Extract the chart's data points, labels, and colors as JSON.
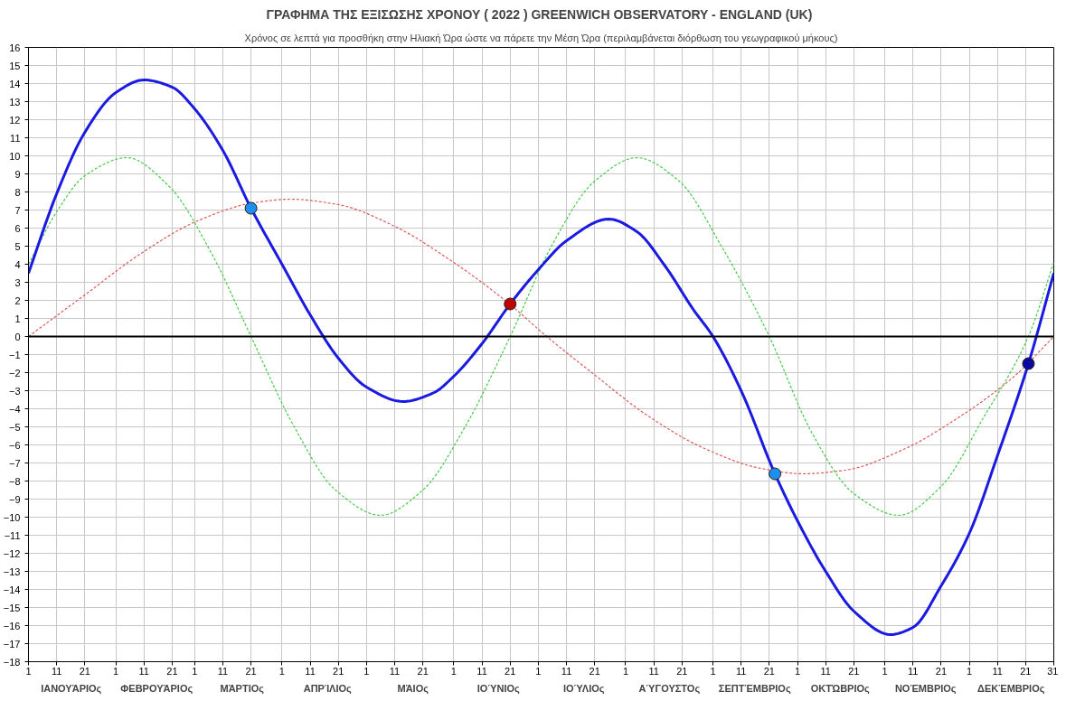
{
  "chart_data": {
    "type": "line",
    "title": "ΓΡΑΦΗΜΑ ΤΗΣ ΕΞΙΣΩΣΗΣ ΧΡΟΝΟΥ ( 2022 )  GREENWICH OBSERVATORY - ENGLAND (UK)",
    "subtitle": "Χρόνος σε λεπτά για προσθήκη στην Ηλιακή Ώρα ώστε να πάρετε την Μέση Ώρα (περιλαμβάνεται διόρθωση του γεωγραφικού μήκους)",
    "xlim": [
      "2022-01-01",
      "2022-12-31"
    ],
    "ylim": [
      -18,
      16
    ],
    "yticks": [
      -18,
      -17,
      -16,
      -15,
      -14,
      -13,
      -12,
      -11,
      -10,
      -9,
      -8,
      -7,
      -6,
      -5,
      -4,
      -3,
      -2,
      -1,
      0,
      1,
      2,
      3,
      4,
      5,
      6,
      7,
      8,
      9,
      10,
      11,
      12,
      13,
      14,
      15,
      16
    ],
    "xticks": [
      {
        "value": "2022-01-01",
        "label": "1"
      },
      {
        "value": "2022-01-11",
        "label": "11"
      },
      {
        "value": "2022-01-21",
        "label": "21"
      },
      {
        "value": "2022-02-01",
        "label": "1"
      },
      {
        "value": "2022-02-11",
        "label": "11"
      },
      {
        "value": "2022-02-21",
        "label": "21"
      },
      {
        "value": "2022-03-01",
        "label": "1"
      },
      {
        "value": "2022-03-11",
        "label": "11"
      },
      {
        "value": "2022-03-21",
        "label": "21"
      },
      {
        "value": "2022-04-01",
        "label": "1"
      },
      {
        "value": "2022-04-11",
        "label": "11"
      },
      {
        "value": "2022-04-21",
        "label": "21"
      },
      {
        "value": "2022-05-01",
        "label": "1"
      },
      {
        "value": "2022-05-11",
        "label": "11"
      },
      {
        "value": "2022-05-21",
        "label": "21"
      },
      {
        "value": "2022-06-01",
        "label": "1"
      },
      {
        "value": "2022-06-11",
        "label": "11"
      },
      {
        "value": "2022-06-21",
        "label": "21"
      },
      {
        "value": "2022-07-01",
        "label": "1"
      },
      {
        "value": "2022-07-11",
        "label": "11"
      },
      {
        "value": "2022-07-21",
        "label": "21"
      },
      {
        "value": "2022-08-01",
        "label": "1"
      },
      {
        "value": "2022-08-11",
        "label": "11"
      },
      {
        "value": "2022-08-21",
        "label": "21"
      },
      {
        "value": "2022-09-01",
        "label": "1"
      },
      {
        "value": "2022-09-11",
        "label": "11"
      },
      {
        "value": "2022-09-21",
        "label": "21"
      },
      {
        "value": "2022-10-01",
        "label": "1"
      },
      {
        "value": "2022-10-11",
        "label": "11"
      },
      {
        "value": "2022-10-21",
        "label": "21"
      },
      {
        "value": "2022-11-01",
        "label": "1"
      },
      {
        "value": "2022-11-11",
        "label": "11"
      },
      {
        "value": "2022-11-21",
        "label": "21"
      },
      {
        "value": "2022-12-01",
        "label": "1"
      },
      {
        "value": "2022-12-11",
        "label": "11"
      },
      {
        "value": "2022-12-21",
        "label": "21"
      },
      {
        "value": "2022-12-31",
        "label": "31"
      }
    ],
    "annotations": [
      "ΙΑΝΟΥΆΡΙΟς",
      "ΦΕΒΡΟΥΆΡΙΟς",
      "ΜΆΡΤΙΟς",
      "ΑΠΡΊΛΙΟς",
      "ΜΆΙΟς",
      "ΙΟΎΝΙΟς",
      "ΙΟΎΛΙΟς",
      "ΑΎΓΟΥΣΤΟς",
      "ΣΕΠΤΈΜΒΡΙΟς",
      "ΟΚΤΏΒΡΙΟς",
      "ΝΟΈΜΒΡΙΟς",
      "ΔΕΚΈΜΒΡΙΟς"
    ],
    "grid": true,
    "ref_lines": [
      {
        "axis": "y",
        "value": 0,
        "color": "#000000"
      }
    ],
    "series": [
      {
        "type": "line",
        "color": "#e05a5a",
        "line_style": "dashed",
        "x": [
          "2022-01-01",
          "2022-01-21",
          "2022-02-10",
          "2022-03-02",
          "2022-03-22",
          "2022-04-04",
          "2022-04-21",
          "2022-05-11",
          "2022-05-31",
          "2022-06-20",
          "2022-07-04",
          "2022-07-20",
          "2022-08-09",
          "2022-08-29",
          "2022-09-18",
          "2022-10-03",
          "2022-10-18",
          "2022-11-07",
          "2022-11-27",
          "2022-12-17",
          "2022-12-31"
        ],
        "values": [
          0,
          2.3,
          4.6,
          6.4,
          7.4,
          7.6,
          7.3,
          6.1,
          4.2,
          1.9,
          0,
          -2.0,
          -4.4,
          -6.2,
          -7.3,
          -7.6,
          -7.4,
          -6.3,
          -4.5,
          -2.2,
          0
        ]
      },
      {
        "type": "line",
        "color": "#44cc44",
        "line_style": "dashed",
        "x": [
          "2022-01-01",
          "2022-01-11",
          "2022-01-21",
          "2022-02-05",
          "2022-02-20",
          "2022-03-07",
          "2022-03-21",
          "2022-04-05",
          "2022-04-20",
          "2022-05-06",
          "2022-05-21",
          "2022-06-05",
          "2022-06-21",
          "2022-07-06",
          "2022-07-21",
          "2022-08-05",
          "2022-08-20",
          "2022-09-04",
          "2022-09-21",
          "2022-10-06",
          "2022-10-21",
          "2022-11-06",
          "2022-11-21",
          "2022-12-06",
          "2022-12-22",
          "2022-12-31"
        ],
        "values": [
          4.0,
          6.9,
          8.9,
          9.9,
          8.3,
          4.6,
          0,
          -4.9,
          -8.5,
          -9.9,
          -8.5,
          -5.0,
          0,
          5.1,
          8.6,
          9.9,
          8.6,
          5.0,
          0,
          -5.3,
          -8.7,
          -9.9,
          -8.3,
          -4.5,
          0,
          4.1
        ]
      },
      {
        "type": "line",
        "color": "#1a1ae0",
        "line_style": "solid",
        "x": [
          "2022-01-01",
          "2022-01-11",
          "2022-01-21",
          "2022-02-01",
          "2022-02-11",
          "2022-02-21",
          "2022-03-01",
          "2022-03-11",
          "2022-03-21",
          "2022-04-01",
          "2022-04-11",
          "2022-04-21",
          "2022-05-01",
          "2022-05-14",
          "2022-05-25",
          "2022-06-01",
          "2022-06-11",
          "2022-06-21",
          "2022-07-01",
          "2022-07-11",
          "2022-07-26",
          "2022-08-05",
          "2022-08-15",
          "2022-08-25",
          "2022-09-01",
          "2022-09-11",
          "2022-09-23",
          "2022-10-01",
          "2022-10-11",
          "2022-10-21",
          "2022-11-03",
          "2022-11-11",
          "2022-11-21",
          "2022-12-01",
          "2022-12-11",
          "2022-12-22",
          "2022-12-31"
        ],
        "values": [
          3.5,
          7.9,
          11.3,
          13.5,
          14.2,
          13.8,
          12.6,
          10.3,
          7.1,
          4.0,
          1.2,
          -1.2,
          -2.8,
          -3.6,
          -3.1,
          -2.2,
          -0.4,
          1.8,
          3.7,
          5.3,
          6.5,
          5.8,
          3.9,
          1.5,
          0.0,
          -3.0,
          -7.6,
          -10.2,
          -13.0,
          -15.2,
          -16.5,
          -16.1,
          -13.8,
          -10.9,
          -6.6,
          -1.5,
          3.5
        ]
      },
      {
        "type": "scatter",
        "marker": "circle",
        "x": [
          "2022-03-21",
          "2022-06-21",
          "2022-09-23",
          "2022-12-22"
        ],
        "values": [
          7.1,
          1.8,
          -7.6,
          -1.5
        ],
        "colors": [
          "#1e8fef",
          "#c00000",
          "#1e8fef",
          "#0a0aa0"
        ]
      }
    ]
  }
}
